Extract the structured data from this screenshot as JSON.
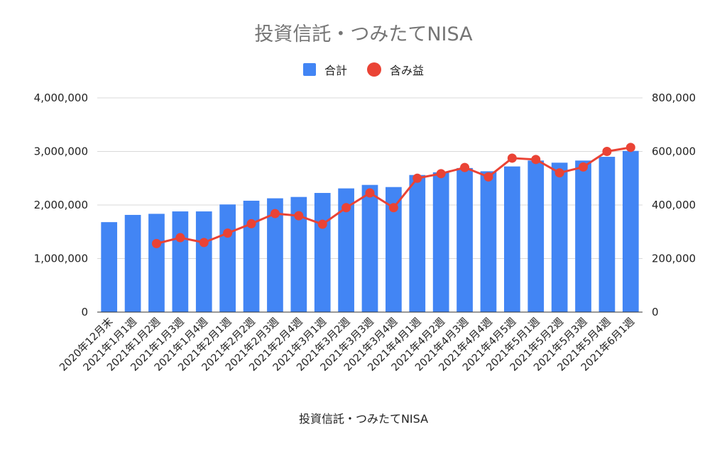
{
  "chart_data": {
    "type": "bar",
    "title": "投資信託・つみたてNISA",
    "xlabel": "投資信託・つみたてNISA",
    "categories": [
      "2020年12月末",
      "2021年1月1週",
      "2021年1月2週",
      "2021年1月3週",
      "2021年1月4週",
      "2021年2月1週",
      "2021年2月2週",
      "2021年2月3週",
      "2021年2月4週",
      "2021年3月1週",
      "2021年3月2週",
      "2021年3月3週",
      "2021年3月4週",
      "2021年4月1週",
      "2021年4月2週",
      "2021年4月3週",
      "2021年4月4週",
      "2021年4月5週",
      "2021年5月1週",
      "2021年5月2週",
      "2021年5月3週",
      "2021年5月4週",
      "2021年6月1週"
    ],
    "series": [
      {
        "name": "合計",
        "type": "bar",
        "axis": "left",
        "color": "#4285f4",
        "values": [
          1680000,
          1815000,
          1835000,
          1880000,
          1880000,
          2010000,
          2080000,
          2125000,
          2150000,
          2225000,
          2310000,
          2375000,
          2335000,
          2560000,
          2610000,
          2690000,
          2630000,
          2720000,
          2830000,
          2790000,
          2830000,
          2900000,
          3010000
        ]
      },
      {
        "name": "含み益",
        "type": "line",
        "axis": "right",
        "color": "#ea4335",
        "values": [
          null,
          null,
          256000,
          278000,
          260000,
          295000,
          330000,
          368000,
          360000,
          328000,
          390000,
          445000,
          390000,
          500000,
          517000,
          540000,
          505000,
          575000,
          570000,
          520000,
          542000,
          600000,
          615000
        ]
      }
    ],
    "y_left": {
      "min": 0,
      "max": 4000000,
      "ticks": [
        "0",
        "1,000,000",
        "2,000,000",
        "3,000,000",
        "4,000,000"
      ]
    },
    "y_right": {
      "min": 0,
      "max": 800000,
      "ticks": [
        "0",
        "200,000",
        "400,000",
        "600,000",
        "800,000"
      ]
    },
    "grid": true,
    "legend_position": "top"
  }
}
